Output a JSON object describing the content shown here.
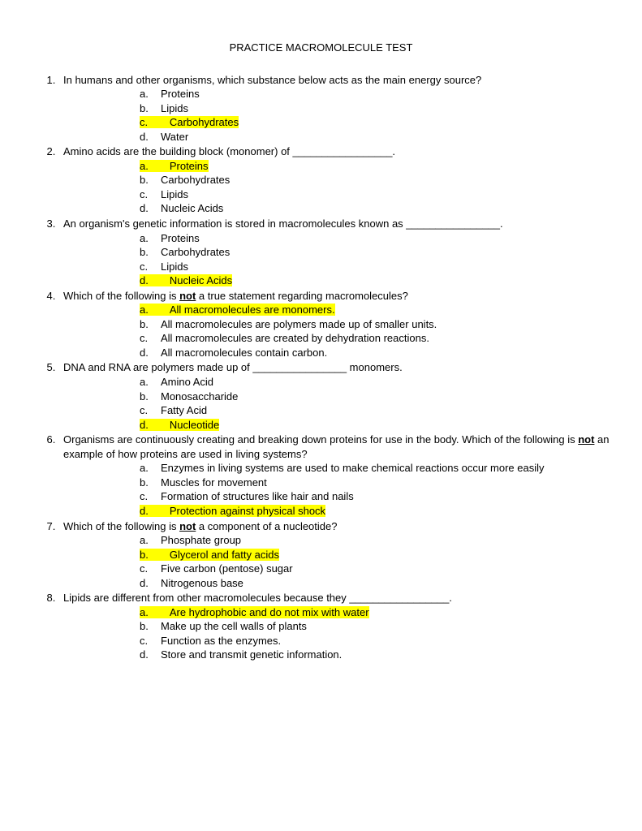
{
  "title": "PRACTICE MACROMOLECULE TEST",
  "questions": [
    {
      "text": "In humans and other organisms, which substance below acts as the main energy source?",
      "answers": [
        {
          "label": "a.",
          "text": "Proteins",
          "hl": false
        },
        {
          "label": "b.",
          "text": "Lipids",
          "hl": false
        },
        {
          "label": "c.",
          "text": "Carbohydrates",
          "hl": true
        },
        {
          "label": "d.",
          "text": "Water",
          "hl": false
        }
      ]
    },
    {
      "text": "Amino acids are the building block (monomer) of _________________.",
      "answers": [
        {
          "label": "a.",
          "text": "Proteins",
          "hl": true
        },
        {
          "label": "b.",
          "text": "Carbohydrates",
          "hl": false
        },
        {
          "label": "c.",
          "text": "Lipids",
          "hl": false
        },
        {
          "label": "d.",
          "text": "Nucleic Acids",
          "hl": false
        }
      ]
    },
    {
      "text": "An organism's genetic information is stored in macromolecules known as ________________.",
      "answers": [
        {
          "label": "a.",
          "text": "Proteins",
          "hl": false
        },
        {
          "label": "b.",
          "text": "Carbohydrates",
          "hl": false
        },
        {
          "label": "c.",
          "text": "Lipids",
          "hl": false
        },
        {
          "label": "d.",
          "text": "Nucleic Acids",
          "hl": true
        }
      ]
    },
    {
      "text_pre": "Which of the following is ",
      "text_bold": "not",
      "text_post": " a true statement regarding macromolecules?",
      "answers": [
        {
          "label": "a.",
          "text": "All macromolecules are monomers.",
          "hl": true
        },
        {
          "label": "b.",
          "text": "All macromolecules are polymers made up of smaller units.",
          "hl": false
        },
        {
          "label": "c.",
          "text": "All macromolecules are created by dehydration reactions.",
          "hl": false
        },
        {
          "label": "d.",
          "text": "All macromolecules contain carbon.",
          "hl": false
        }
      ]
    },
    {
      "text": "DNA and RNA are polymers made up of ________________ monomers.",
      "answers": [
        {
          "label": "a.",
          "text": "Amino Acid",
          "hl": false
        },
        {
          "label": "b.",
          "text": "Monosaccharide",
          "hl": false
        },
        {
          "label": "c.",
          "text": "Fatty Acid",
          "hl": false
        },
        {
          "label": "d.",
          "text": "Nucleotide",
          "hl": true
        }
      ]
    },
    {
      "text_pre": "Organisms are continuously creating and breaking down proteins for use in the body. Which of the following is ",
      "text_bold": "not",
      "text_post": " an example of how proteins are used in living systems?",
      "answers": [
        {
          "label": "a.",
          "text": "Enzymes in living systems are used to make chemical reactions occur more easily",
          "hl": false
        },
        {
          "label": "b.",
          "text": "Muscles for movement",
          "hl": false
        },
        {
          "label": "c.",
          "text": "Formation of structures like hair and nails",
          "hl": false
        },
        {
          "label": "d.",
          "text": "Protection against physical shock",
          "hl": true
        }
      ]
    },
    {
      "text_pre": "Which of the following is ",
      "text_bold": "not",
      "text_post": " a component of a nucleotide?",
      "answers": [
        {
          "label": "a.",
          "text": "Phosphate group",
          "hl": false
        },
        {
          "label": "b.",
          "text": "Glycerol and fatty acids",
          "hl": true
        },
        {
          "label": "c.",
          "text": "Five carbon (pentose) sugar",
          "hl": false
        },
        {
          "label": "d.",
          "text": "Nitrogenous base",
          "hl": false
        }
      ]
    },
    {
      "text": "Lipids are different from other macromolecules because they _________________.",
      "answers": [
        {
          "label": "a.",
          "text": "Are hydrophobic and do not mix with water",
          "hl": true
        },
        {
          "label": "b.",
          "text": "Make up the cell walls of plants",
          "hl": false
        },
        {
          "label": "c.",
          "text": "Function as the enzymes.",
          "hl": false
        },
        {
          "label": "d.",
          "text": "Store and transmit genetic information.",
          "hl": false
        }
      ]
    }
  ],
  "highlight_color": "#ffff00",
  "text_color": "#000000",
  "background_color": "#ffffff",
  "font_family": "Arial",
  "font_size_pt": 10
}
